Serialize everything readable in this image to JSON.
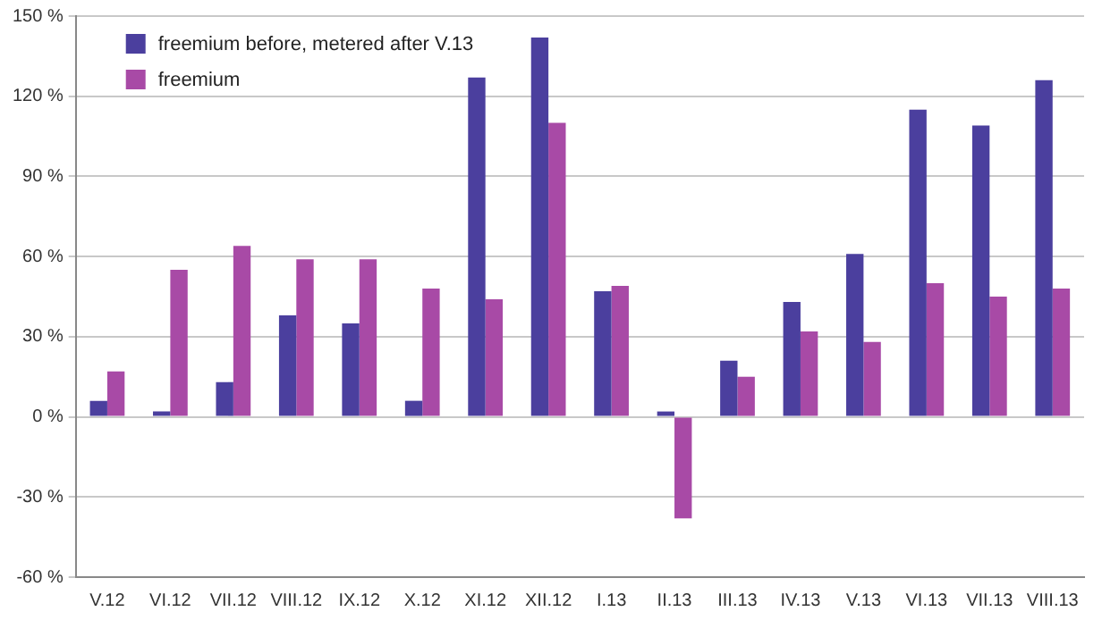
{
  "chart_data": {
    "type": "bar",
    "categories": [
      "V.12",
      "VI.12",
      "VII.12",
      "VIII.12",
      "IX.12",
      "X.12",
      "XI.12",
      "XII.12",
      "I.13",
      "II.13",
      "III.13",
      "IV.13",
      "V.13",
      "VI.13",
      "VII.13",
      "VIII.13"
    ],
    "series": [
      {
        "name": "freemium before, metered after V.13",
        "color": "#4b3f9e",
        "values": [
          6,
          2,
          13,
          38,
          35,
          6,
          127,
          142,
          47,
          2,
          21,
          43,
          61,
          115,
          109,
          126
        ]
      },
      {
        "name": "freemium",
        "color": "#a84aa6",
        "values": [
          17,
          55,
          64,
          59,
          59,
          48,
          44,
          110,
          49,
          -38,
          15,
          32,
          28,
          50,
          45,
          48
        ]
      }
    ],
    "ylim": [
      -60,
      150
    ],
    "yticks": [
      {
        "value": -60,
        "label": "-60 %"
      },
      {
        "value": -30,
        "label": "-30 %"
      },
      {
        "value": 0,
        "label": "0 %"
      },
      {
        "value": 30,
        "label": "30 %"
      },
      {
        "value": 60,
        "label": "60 %"
      },
      {
        "value": 90,
        "label": "90 %"
      },
      {
        "value": 120,
        "label": "120 %"
      },
      {
        "value": 150,
        "label": "150 %"
      }
    ],
    "grid": "y",
    "legend": "top left"
  }
}
